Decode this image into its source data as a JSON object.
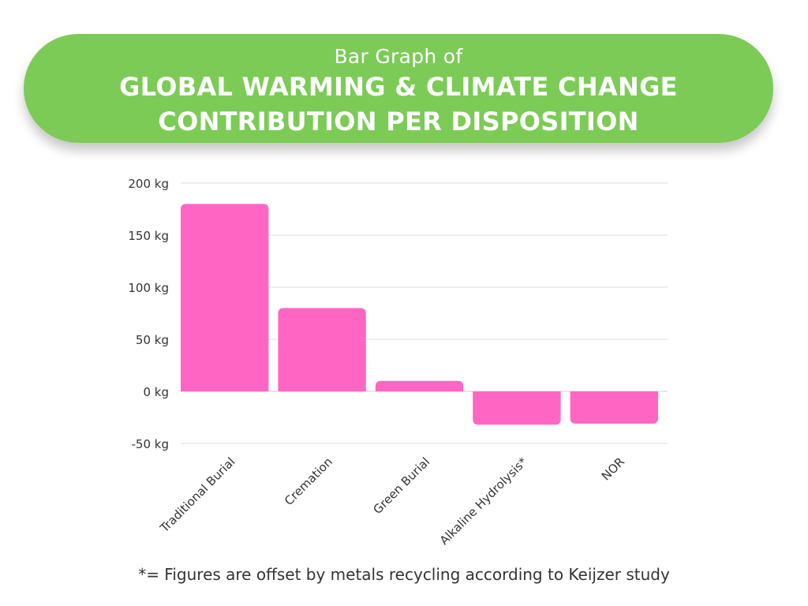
{
  "header": {
    "subtitle": "Bar Graph of",
    "title_line1": "GLOBAL WARMING & CLIMATE CHANGE",
    "title_line2": "CONTRIBUTION PER DISPOSITION"
  },
  "footnote": "*= Figures are offset by metals recycling according to Keijzer study",
  "colors": {
    "banner": "#7ccb56",
    "bar": "#ff66c4",
    "grid": "#dddddd",
    "text": "#333333"
  },
  "chart_data": {
    "type": "bar",
    "title": "",
    "xlabel": "",
    "ylabel": "",
    "categories": [
      "Traditional Burial",
      "Cremation",
      "Green Burial",
      "Alkaline Hydrolysis*",
      "NOR"
    ],
    "values": [
      180,
      80,
      10,
      -32,
      -31
    ],
    "ylim": [
      -50,
      200
    ],
    "yticks": [
      200,
      150,
      100,
      50,
      0,
      -50
    ],
    "ytick_labels": [
      "200 kg",
      "150 kg",
      "100 kg",
      "50 kg",
      "0 kg",
      "-50 kg"
    ],
    "grid": true,
    "legend": "none"
  }
}
